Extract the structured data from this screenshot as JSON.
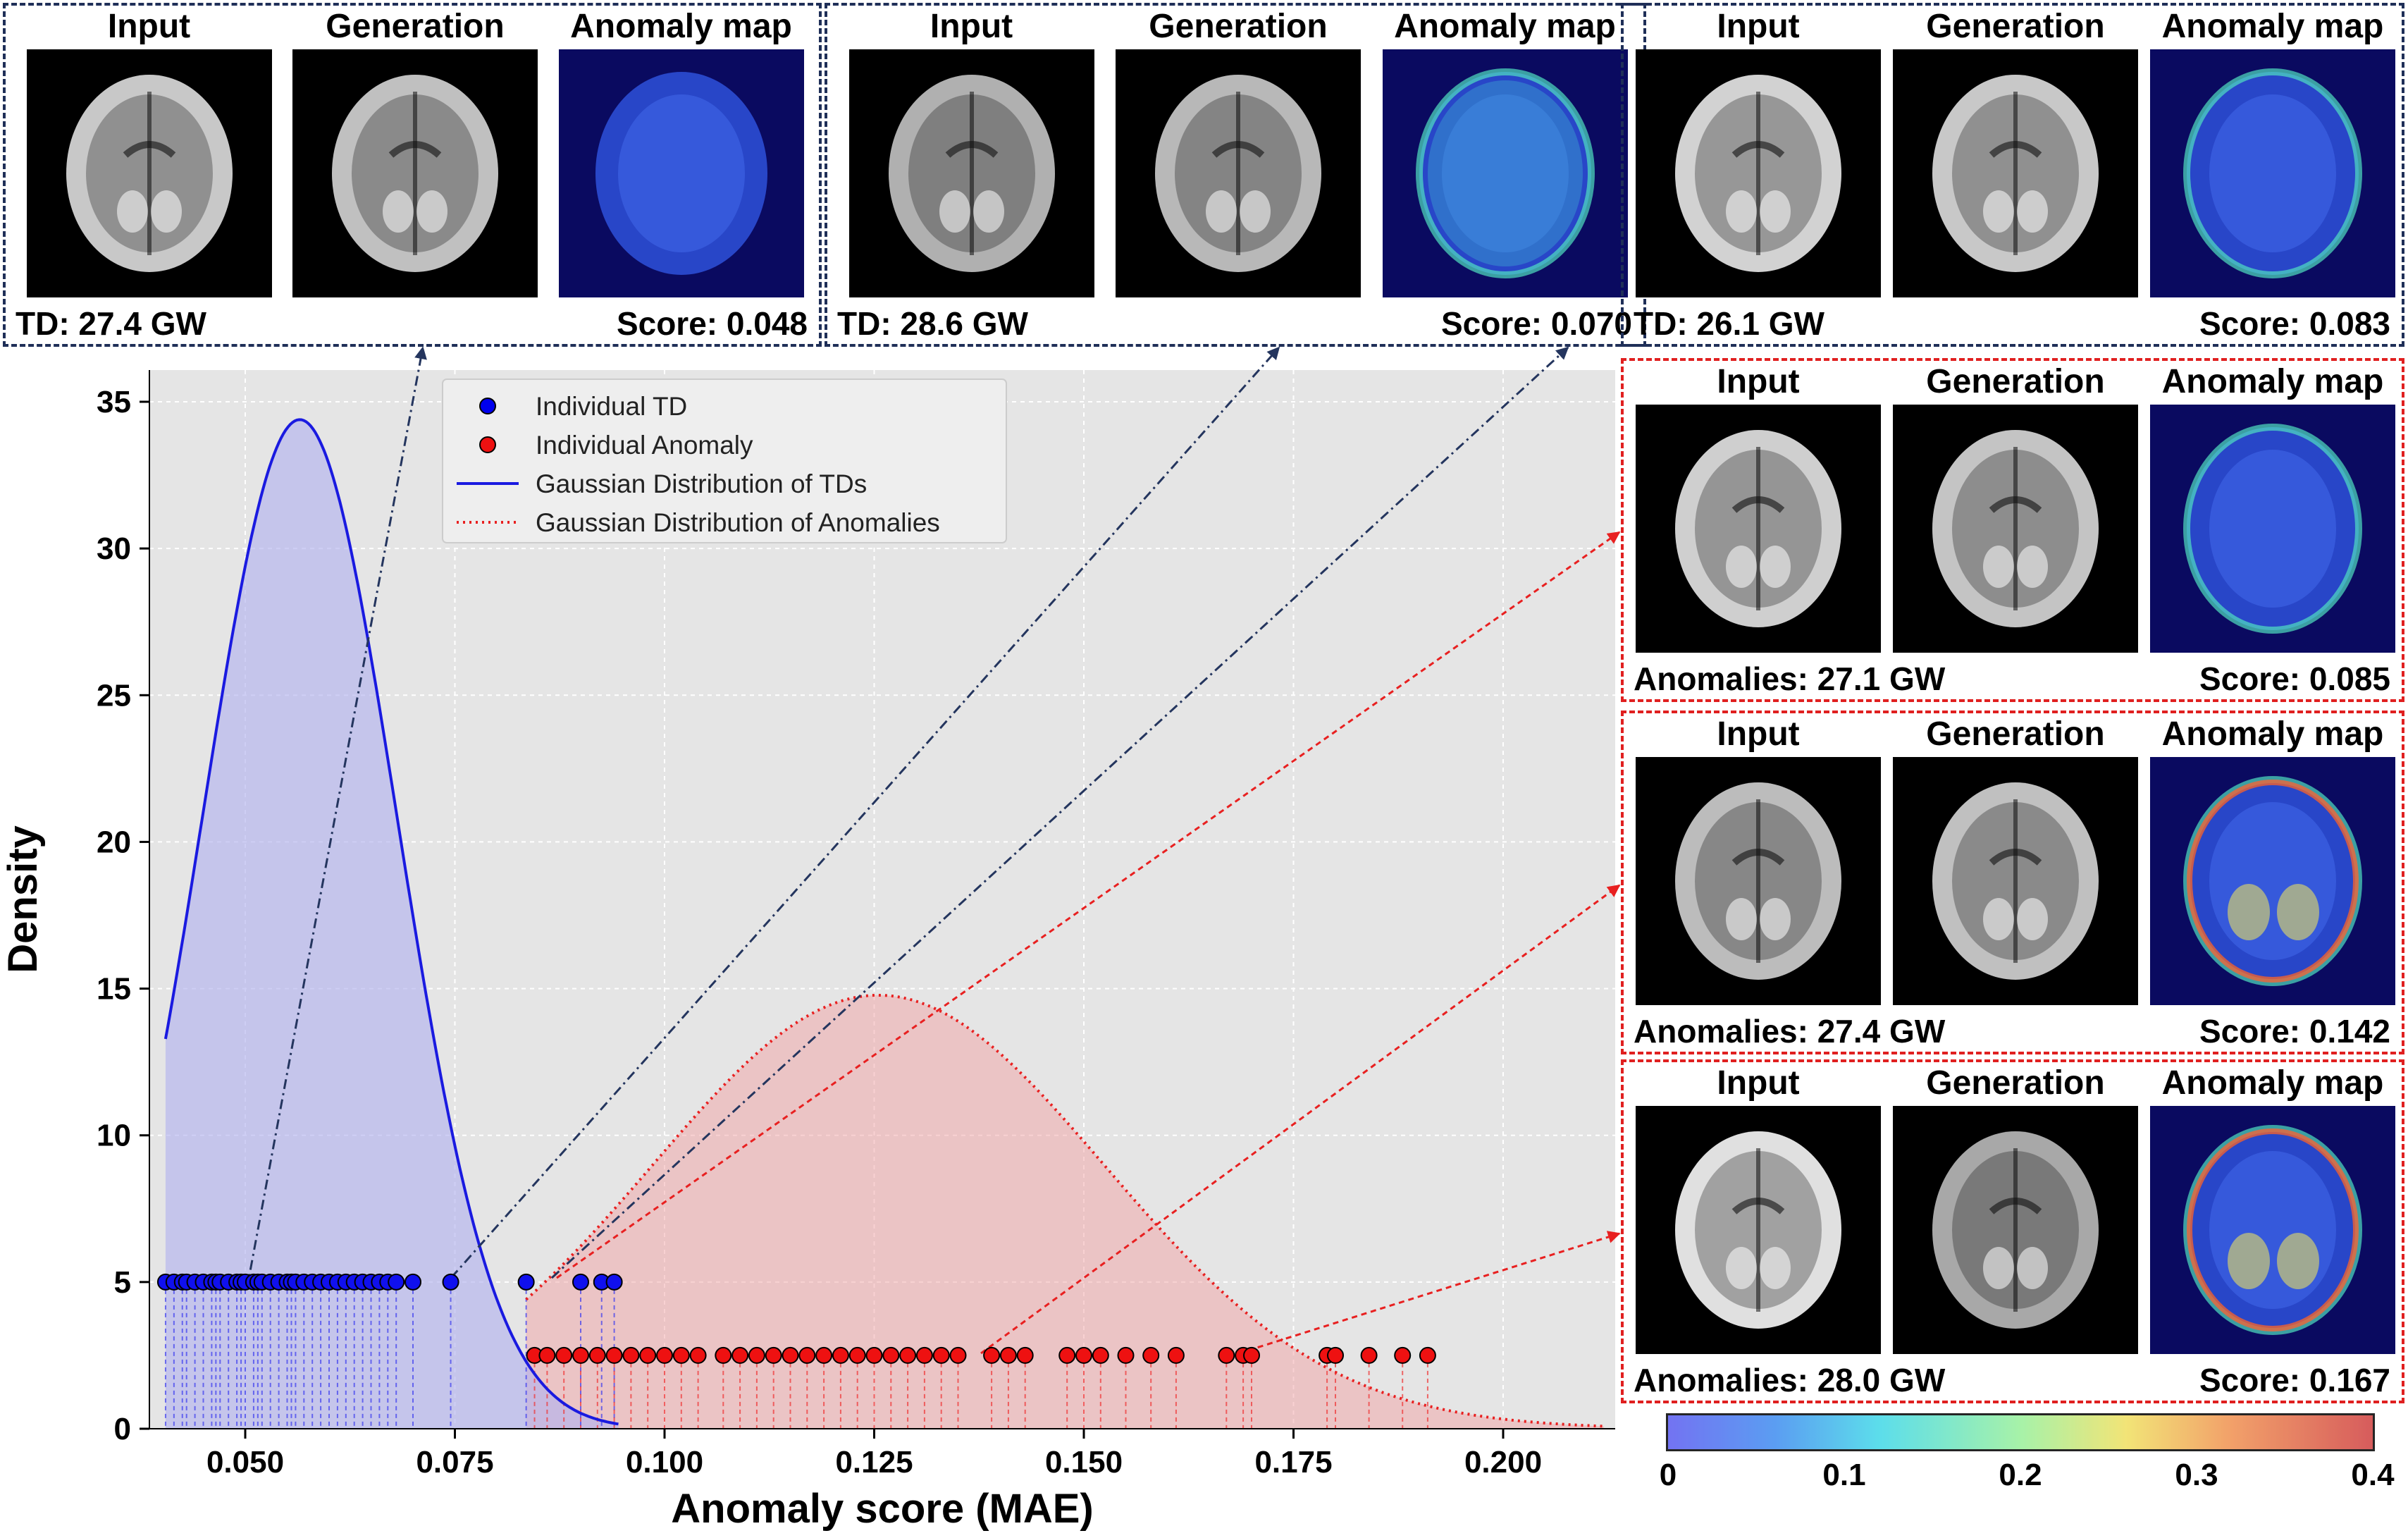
{
  "chart_data": {
    "type": "scatter",
    "xlabel": "Anomaly score (MAE)",
    "ylabel": "Density",
    "xlim": [
      0.035,
      0.215
    ],
    "ylim": [
      0,
      37
    ],
    "xticks": [
      "0.050",
      "0.075",
      "0.100",
      "0.125",
      "0.150",
      "0.175",
      "0.200"
    ],
    "yticks": [
      "0",
      "5",
      "10",
      "15",
      "20",
      "25",
      "30",
      "35"
    ],
    "grid": true,
    "legend_position": "top-center",
    "legend": [
      {
        "label": "Individual TD",
        "kind": "marker",
        "color": "#0000ee"
      },
      {
        "label": "Individual Anomaly",
        "kind": "marker",
        "color": "#ee1111"
      },
      {
        "label": "Gaussian Distribution of TDs",
        "kind": "solid",
        "color": "#1a1ae0"
      },
      {
        "label": "Gaussian Distribution of Anomalies",
        "kind": "dotted",
        "color": "#e82020"
      }
    ],
    "td_points": {
      "y": 5,
      "color": "#1010ee",
      "x": [
        0.0405,
        0.0415,
        0.0425,
        0.043,
        0.044,
        0.045,
        0.046,
        0.0465,
        0.047,
        0.048,
        0.049,
        0.0495,
        0.05,
        0.051,
        0.0515,
        0.052,
        0.053,
        0.054,
        0.055,
        0.0555,
        0.056,
        0.057,
        0.058,
        0.059,
        0.06,
        0.061,
        0.062,
        0.063,
        0.064,
        0.065,
        0.066,
        0.067,
        0.068,
        0.07,
        0.0745,
        0.0835,
        0.09,
        0.0925,
        0.094
      ]
    },
    "anomaly_points": {
      "y": 2.5,
      "color": "#ee1111",
      "x": [
        0.0845,
        0.086,
        0.088,
        0.09,
        0.092,
        0.094,
        0.096,
        0.098,
        0.1,
        0.102,
        0.104,
        0.107,
        0.109,
        0.111,
        0.113,
        0.115,
        0.117,
        0.119,
        0.121,
        0.123,
        0.125,
        0.127,
        0.129,
        0.131,
        0.133,
        0.135,
        0.139,
        0.141,
        0.143,
        0.148,
        0.15,
        0.152,
        0.155,
        0.158,
        0.161,
        0.167,
        0.169,
        0.17,
        0.179,
        0.18,
        0.184,
        0.188,
        0.191
      ]
    },
    "td_gaussian": {
      "mean": 0.0565,
      "std": 0.0116,
      "x_range": [
        0.0405,
        0.0945
      ],
      "color": "#1a1ae0"
    },
    "anomaly_gaussian": {
      "mean": 0.1255,
      "std": 0.027,
      "x_range": [
        0.0835,
        0.212
      ],
      "color": "#e82020"
    },
    "colorbar": {
      "range": [
        0,
        0.4
      ],
      "ticks": [
        "0",
        "0.1",
        "0.2",
        "0.3",
        "0.4"
      ]
    }
  },
  "panels": [
    {
      "id": "td1",
      "labels": [
        "Input",
        "Generation",
        "Anomaly map"
      ],
      "caption": "TD: 27.4 GW",
      "score": "Score: 0.048",
      "style": "blue"
    },
    {
      "id": "td2",
      "labels": [
        "Input",
        "Generation",
        "Anomaly map"
      ],
      "caption": "TD: 28.6 GW",
      "score": "Score: 0.070",
      "style": "blue"
    },
    {
      "id": "td3",
      "labels": [
        "Input",
        "Generation",
        "Anomaly map"
      ],
      "caption": "TD: 26.1 GW",
      "score": "Score: 0.083",
      "style": "blue"
    },
    {
      "id": "an1",
      "labels": [
        "Input",
        "Generation",
        "Anomaly map"
      ],
      "caption": "Anomalies: 27.1 GW",
      "score": "Score: 0.085",
      "style": "red"
    },
    {
      "id": "an2",
      "labels": [
        "Input",
        "Generation",
        "Anomaly map"
      ],
      "caption": "Anomalies: 27.4 GW",
      "score": "Score: 0.142",
      "style": "red"
    },
    {
      "id": "an3",
      "labels": [
        "Input",
        "Generation",
        "Anomaly map"
      ],
      "caption": "Anomalies: 28.0 GW",
      "score": "Score: 0.167",
      "style": "red"
    }
  ]
}
